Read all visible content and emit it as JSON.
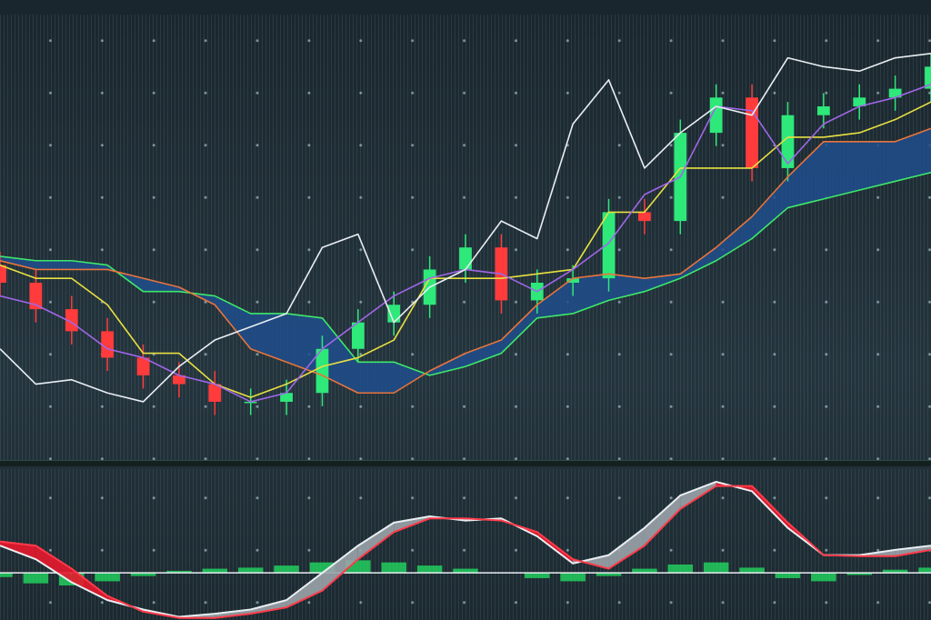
{
  "chart_data": [
    {
      "type": "ichimoku",
      "x": [
        0,
        1,
        2,
        3,
        4,
        5,
        6,
        7,
        8,
        9,
        10,
        11,
        12,
        13,
        14,
        15,
        16,
        17,
        18,
        19,
        20,
        21,
        22,
        23,
        24,
        25,
        26
      ],
      "xlim": [
        0,
        26
      ],
      "ylim": [
        0,
        100
      ],
      "grid": true,
      "candles": {
        "up_color": "#2ee87a",
        "down_color": "#ff3b3b",
        "open": [
          44,
          40,
          34,
          29,
          23,
          19,
          17,
          13,
          13,
          15,
          25,
          31,
          35,
          43,
          48,
          36,
          40,
          41,
          56,
          54,
          74,
          82,
          66,
          78,
          80,
          82,
          84
        ],
        "high": [
          47,
          43,
          37,
          32,
          26,
          22,
          20,
          16,
          18,
          28,
          34,
          38,
          46,
          51,
          51,
          43,
          44,
          59,
          59,
          77,
          85,
          85,
          81,
          83,
          85,
          87,
          92
        ],
        "low": [
          37,
          31,
          26,
          20,
          16,
          14,
          10,
          10,
          10,
          12,
          22,
          28,
          32,
          40,
          33,
          33,
          37,
          38,
          51,
          51,
          71,
          63,
          63,
          75,
          77,
          79,
          81
        ],
        "close": [
          40,
          34,
          29,
          23,
          19,
          17,
          13,
          13,
          15,
          25,
          31,
          35,
          43,
          48,
          36,
          40,
          41,
          56,
          54,
          74,
          82,
          66,
          78,
          80,
          82,
          84,
          89
        ]
      },
      "cloud_color": "#1f4e8c",
      "series": [
        {
          "color": "#3ee86a",
          "values": [
            46,
            45,
            45,
            44,
            38,
            38,
            37,
            33,
            33,
            32,
            22,
            22,
            19,
            21,
            24,
            32,
            33,
            36,
            38,
            41,
            45,
            50,
            57,
            59,
            61,
            63,
            65
          ]
        },
        {
          "color": "#e8743b",
          "values": [
            45,
            43,
            43,
            43,
            41,
            39,
            35,
            25,
            22,
            19,
            15,
            15,
            20,
            24,
            27,
            35,
            41,
            42,
            41,
            42,
            48,
            55,
            64,
            72,
            72,
            72,
            75
          ]
        },
        {
          "color": "#e8e040",
          "values": [
            44,
            41,
            41,
            35,
            24,
            24,
            17,
            14,
            17,
            21,
            23,
            27,
            41,
            41,
            41,
            42,
            43,
            56,
            56,
            66,
            66,
            66,
            73,
            73,
            74,
            77,
            81
          ]
        },
        {
          "color": "#a066e8",
          "values": [
            37,
            35,
            31,
            25,
            23,
            19,
            17,
            13,
            15,
            25,
            31,
            37,
            41,
            43,
            42,
            38,
            43,
            49,
            60,
            64,
            80,
            79,
            67,
            76,
            80,
            82,
            85
          ]
        },
        {
          "color": "#e8eef2",
          "values": [
            25,
            17,
            18,
            15,
            13,
            21,
            27,
            30,
            33,
            48,
            51,
            31,
            39,
            43,
            54,
            50,
            76,
            86,
            66,
            74,
            80,
            78,
            91,
            89,
            88,
            91,
            92
          ]
        }
      ]
    },
    {
      "type": "macd",
      "x": [
        0,
        1,
        2,
        3,
        4,
        5,
        6,
        7,
        8,
        9,
        10,
        11,
        12,
        13,
        14,
        15,
        16,
        17,
        18,
        19,
        20,
        21,
        22,
        23,
        24,
        25,
        26
      ],
      "xlim": [
        0,
        26
      ],
      "ylim": [
        -0.45,
        1
      ],
      "grid": true,
      "zero_color": "#e8eef2",
      "up_fill": "#9aa3a8",
      "down_fill": "#e8182c",
      "series": [
        {
          "color": "#e8eef2",
          "values": [
            0.26,
            0.13,
            -0.09,
            -0.26,
            -0.35,
            -0.42,
            -0.39,
            -0.35,
            -0.26,
            0,
            0.26,
            0.48,
            0.54,
            0.5,
            0.52,
            0.35,
            0.09,
            0.17,
            0.43,
            0.74,
            0.87,
            0.78,
            0.43,
            0.17,
            0.17,
            0.22,
            0.26
          ]
        },
        {
          "color": "#ff3b4a",
          "values": [
            0.3,
            0.26,
            0.04,
            -0.22,
            -0.37,
            -0.43,
            -0.43,
            -0.39,
            -0.33,
            -0.17,
            0.13,
            0.39,
            0.52,
            0.52,
            0.5,
            0.39,
            0.13,
            0.04,
            0.26,
            0.61,
            0.83,
            0.83,
            0.48,
            0.17,
            0.16,
            0.16,
            0.22
          ]
        }
      ],
      "histogram": {
        "color": "#22d860",
        "values": [
          -0.04,
          -0.1,
          -0.12,
          -0.08,
          -0.03,
          0.02,
          0.04,
          0.05,
          0.07,
          0.1,
          0.12,
          0.1,
          0.07,
          0.04,
          0,
          -0.05,
          -0.08,
          -0.03,
          0.04,
          0.08,
          0.1,
          0.05,
          -0.05,
          -0.08,
          -0.02,
          0.03,
          0.05
        ]
      }
    }
  ]
}
